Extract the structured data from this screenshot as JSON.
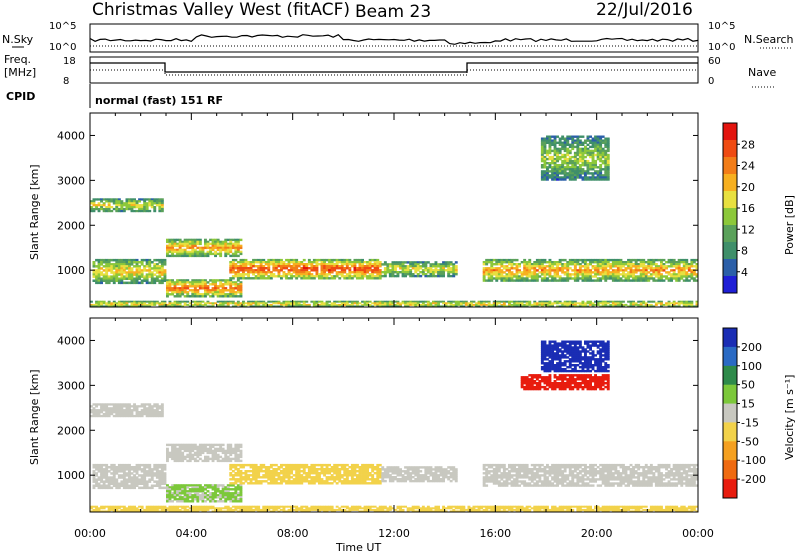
{
  "header": {
    "title": "Christmas Valley West (fitACF)",
    "beam": "Beam 23",
    "date": "22/Jul/2016"
  },
  "top_panels": {
    "nsky_label": "N.Sky",
    "nsky_ticks": [
      "10^5",
      "10^0"
    ],
    "nsearch_label": "N.Search",
    "freq_label_1": "Freq.",
    "freq_label_2": "[MHz]",
    "freq_ticks": [
      "18",
      "8"
    ],
    "nave_ticks": [
      "60",
      "0"
    ],
    "nave_label": "Nave",
    "cpid_label": "CPID",
    "cpid_text": "normal (fast) 151 RF"
  },
  "colors": {
    "power": [
      "#1f1fd6",
      "#2b5fa8",
      "#3f8f6a",
      "#5aa15a",
      "#8cc83a",
      "#e8e040",
      "#f7b020",
      "#f27d18",
      "#ef4b12",
      "#e3140e"
    ],
    "velocity": [
      "#1a2db4",
      "#2a6ac4",
      "#2e8a4a",
      "#7cc83a",
      "#c8c8c0",
      "#f2d24a",
      "#f5a020",
      "#ef6a10",
      "#e81c0e"
    ]
  },
  "chart_data": [
    {
      "type": "heatmap",
      "name": "power",
      "ylabel": "Slant Range [km]",
      "y_ticks": [
        "4000",
        "3000",
        "2000",
        "1000"
      ],
      "ylim": [
        180,
        4500
      ],
      "x_ticks": [
        "00:00",
        "04:00",
        "08:00",
        "12:00",
        "16:00",
        "20:00",
        "00:00"
      ],
      "colorbar_label": "Power [dB]",
      "colorbar_ticks": [
        "28",
        "24",
        "20",
        "16",
        "12",
        "8",
        "4"
      ],
      "blobs": [
        {
          "t": [
            0.0,
            2.9
          ],
          "r": [
            2300,
            2600
          ],
          "v": 14
        },
        {
          "t": [
            0.1,
            3.0
          ],
          "r": [
            700,
            1250
          ],
          "v": 16
        },
        {
          "t": [
            3.0,
            6.0
          ],
          "r": [
            1300,
            1700
          ],
          "v": 18
        },
        {
          "t": [
            3.0,
            6.0
          ],
          "r": [
            400,
            800
          ],
          "v": 20
        },
        {
          "t": [
            5.5,
            11.5
          ],
          "r": [
            800,
            1250
          ],
          "v": 22
        },
        {
          "t": [
            11.5,
            14.5
          ],
          "r": [
            850,
            1200
          ],
          "v": 14
        },
        {
          "t": [
            15.5,
            24.0
          ],
          "r": [
            750,
            1250
          ],
          "v": 18
        },
        {
          "t": [
            17.8,
            20.5
          ],
          "r": [
            3000,
            4000
          ],
          "v": 12
        },
        {
          "t": [
            0.0,
            24.0
          ],
          "r": [
            180,
            320
          ],
          "v": 16
        }
      ]
    },
    {
      "type": "heatmap",
      "name": "velocity",
      "ylabel": "Slant Range [km]",
      "y_ticks": [
        "4000",
        "3000",
        "2000",
        "1000"
      ],
      "ylim": [
        180,
        4500
      ],
      "x_ticks": [
        "00:00",
        "04:00",
        "08:00",
        "12:00",
        "16:00",
        "20:00",
        "00:00"
      ],
      "xlabel": "Time UT",
      "colorbar_label": "Velocity [m s⁻¹]",
      "colorbar_ticks": [
        "200",
        "100",
        "50",
        "15",
        "-15",
        "-50",
        "-100",
        "-200"
      ],
      "blobs": [
        {
          "t": [
            0.0,
            2.9
          ],
          "r": [
            2300,
            2600
          ],
          "v": 0
        },
        {
          "t": [
            0.1,
            3.0
          ],
          "r": [
            700,
            1250
          ],
          "v": 0
        },
        {
          "t": [
            3.0,
            6.0
          ],
          "r": [
            1300,
            1700
          ],
          "v": 0
        },
        {
          "t": [
            3.0,
            6.0
          ],
          "r": [
            400,
            800
          ],
          "v": 20
        },
        {
          "t": [
            5.5,
            11.5
          ],
          "r": [
            800,
            1250
          ],
          "v": -30
        },
        {
          "t": [
            11.5,
            14.5
          ],
          "r": [
            850,
            1200
          ],
          "v": 0
        },
        {
          "t": [
            15.5,
            24.0
          ],
          "r": [
            750,
            1250
          ],
          "v": 0
        },
        {
          "t": [
            17.8,
            20.5
          ],
          "r": [
            3300,
            4000
          ],
          "v": 250
        },
        {
          "t": [
            17.0,
            20.5
          ],
          "r": [
            2900,
            3250
          ],
          "v": -250
        },
        {
          "t": [
            0.0,
            24.0
          ],
          "r": [
            180,
            320
          ],
          "v": -30
        }
      ]
    }
  ]
}
